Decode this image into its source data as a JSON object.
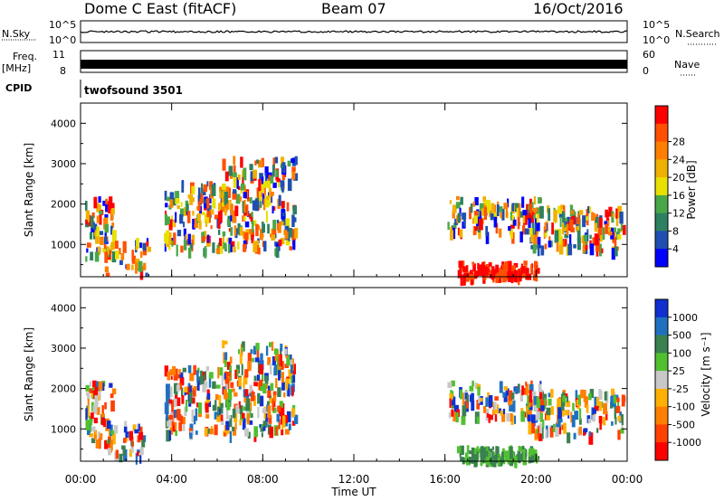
{
  "header": {
    "title": "Dome C East (fitACF)",
    "beam": "Beam 07",
    "date": "16/Oct/2016"
  },
  "aux_panels": {
    "nsky_label": "N.Sky",
    "nsky_ticks": [
      "10^5",
      "10^0"
    ],
    "nsearch_label": "N.Search",
    "freq_label": "Freq.",
    "freq_unit": "[MHz]",
    "freq_ticks": [
      "11",
      "8"
    ],
    "nave_label": "Nave",
    "nave_ticks": [
      "60",
      "0"
    ],
    "cpid_label": "CPID",
    "cpid_value": "twofsound 3501"
  },
  "colors": {
    "power_scale": [
      "#0000ff",
      "#1f4fb0",
      "#2d8060",
      "#48a848",
      "#e8e000",
      "#f0b000",
      "#ff7f00",
      "#ff5000",
      "#ff0000"
    ],
    "velocity_scale": [
      "#1030d0",
      "#2070c0",
      "#3a8050",
      "#50c030",
      "#c8c8c8",
      "#ffb000",
      "#ff7f00",
      "#ff4000",
      "#ff0000"
    ]
  },
  "chart_data": [
    {
      "type": "heatmap",
      "name": "power",
      "ylabel": "Slant Range [km]",
      "yticks": [
        "1000",
        "2000",
        "3000",
        "4000"
      ],
      "ylim": [
        200,
        4500
      ],
      "xticks": [
        "00:00",
        "04:00",
        "08:00",
        "12:00",
        "16:00",
        "20:00",
        "00:00"
      ],
      "xlim_hours": [
        0,
        24
      ],
      "colorbar_label": "Power [dB]",
      "colorbar_ticks": [
        "4",
        "8",
        "12",
        "16",
        "20",
        "24",
        "28"
      ],
      "colorbar_range": [
        0,
        30
      ]
    },
    {
      "type": "heatmap",
      "name": "velocity",
      "ylabel": "Slant Range [km]",
      "yticks": [
        "1000",
        "2000",
        "3000",
        "4000"
      ],
      "ylim": [
        200,
        4500
      ],
      "xticks": [
        "00:00",
        "04:00",
        "08:00",
        "12:00",
        "16:00",
        "20:00",
        "00:00"
      ],
      "xlim_hours": [
        0,
        24
      ],
      "xlabel": "Time UT",
      "colorbar_label": "Velocity [m s⁻¹]",
      "colorbar_ticks": [
        "1000",
        "500",
        "100",
        "25",
        "-25",
        "-100",
        "-500",
        "-1000"
      ]
    }
  ]
}
